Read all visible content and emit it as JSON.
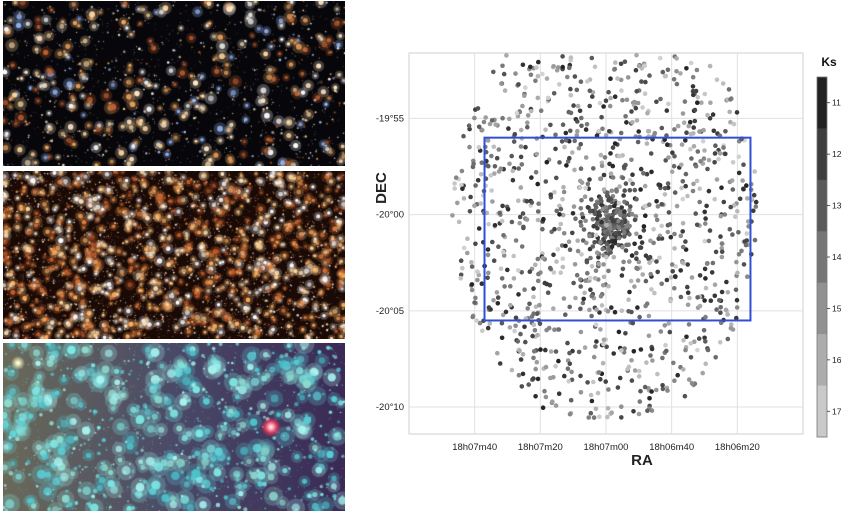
{
  "panels": [
    {
      "id": "top",
      "description_icon": "optical-starfield-image"
    },
    {
      "id": "middle",
      "description_icon": "dense-starfield-image"
    },
    {
      "id": "bottom",
      "description_icon": "infrared-starfield-image"
    }
  ],
  "chart_data": {
    "type": "scatter",
    "xlabel": "RA",
    "ylabel": "DEC",
    "x_ticks": [
      "18h07m40",
      "18h07m20",
      "18h07m00",
      "18h06m40",
      "18h06m20"
    ],
    "y_ticks": [
      "-19°55",
      "-20°00",
      "-20°05",
      "-20°10"
    ],
    "x_range_deg_ra": [
      272.0,
      271.5
    ],
    "y_range_deg_dec": [
      -20.19,
      -19.86
    ],
    "grid": true,
    "colorbar": {
      "title": "Ks",
      "ticks": [
        "11",
        "12",
        "13",
        "14",
        "15",
        "16",
        "17"
      ],
      "range": [
        10.5,
        17.5
      ],
      "colormap": "gray-reversed"
    },
    "field_center": {
      "ra": "18h07m00",
      "dec": "-20°00"
    },
    "field_radius_arcmin": 11,
    "cluster_core": {
      "ra": "18h06m59",
      "dec": "-20°00.5",
      "radius_arcmin": 1.5
    },
    "rectangle": {
      "ra_range": [
        "18h07m37",
        "18h06m16"
      ],
      "dec_range": [
        "-19°56",
        "-20°05.5"
      ],
      "color": "#2f4fd8"
    },
    "point_count": 1400
  }
}
